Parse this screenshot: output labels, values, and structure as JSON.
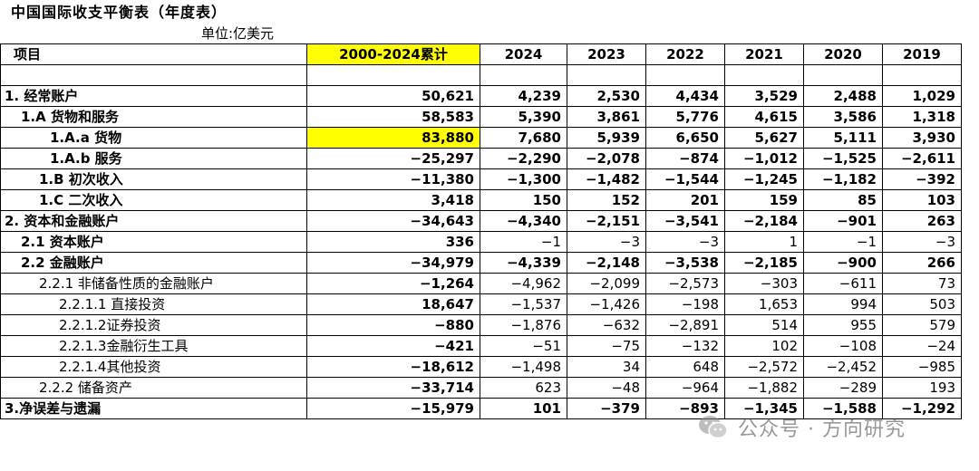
{
  "title": "中国国际收支平衡表（年度表）",
  "unit": "单位:亿美元",
  "header": {
    "item": "项目",
    "columns": [
      "2000-2024累计",
      "2024",
      "2023",
      "2022",
      "2021",
      "2020",
      "2019"
    ]
  },
  "rows": [
    {
      "label": "",
      "values": [
        "",
        "",
        "",
        "",
        "",
        "",
        ""
      ]
    },
    {
      "label": "1. 经常账户",
      "values": [
        "50,621",
        "4,239",
        "2,530",
        "4,434",
        "3,529",
        "2,488",
        "1,029"
      ]
    },
    {
      "label": "1.A 货物和服务",
      "values": [
        "58,583",
        "5,390",
        "3,861",
        "5,776",
        "4,615",
        "3,586",
        "1,318"
      ]
    },
    {
      "label": "1.A.a 货物",
      "values": [
        "83,880",
        "7,680",
        "5,939",
        "6,650",
        "5,627",
        "5,111",
        "3,930"
      ]
    },
    {
      "label": "1.A.b 服务",
      "values": [
        "−25,297",
        "−2,290",
        "−2,078",
        "−874",
        "−1,012",
        "−1,525",
        "−2,611"
      ]
    },
    {
      "label": "1.B 初次收入",
      "values": [
        "−11,380",
        "−1,300",
        "−1,482",
        "−1,544",
        "−1,245",
        "−1,182",
        "−392"
      ]
    },
    {
      "label": "1.C 二次收入",
      "values": [
        "3,418",
        "150",
        "152",
        "201",
        "159",
        "85",
        "103"
      ]
    },
    {
      "label": "2. 资本和金融账户",
      "values": [
        "−34,643",
        "−4,340",
        "−2,151",
        "−3,541",
        "−2,184",
        "−901",
        "263"
      ]
    },
    {
      "label": "2.1 资本账户",
      "values": [
        "336",
        "−1",
        "−3",
        "−3",
        "1",
        "−1",
        "−3"
      ]
    },
    {
      "label": "2.2 金融账户",
      "values": [
        "−34,979",
        "−4,339",
        "−2,148",
        "−3,538",
        "−2,185",
        "−900",
        "266"
      ]
    },
    {
      "label": "2.2.1 非储备性质的金融账户",
      "values": [
        "−1,264",
        "−4,962",
        "−2,099",
        "−2,573",
        "−303",
        "−611",
        "73"
      ]
    },
    {
      "label": "2.2.1.1 直接投资",
      "values": [
        "18,647",
        "−1,537",
        "−1,426",
        "−198",
        "1,653",
        "994",
        "503"
      ]
    },
    {
      "label": "2.2.1.2证券投资",
      "values": [
        "−880",
        "−1,876",
        "−632",
        "−2,891",
        "514",
        "955",
        "579"
      ]
    },
    {
      "label": "2.2.1.3金融衍生工具",
      "values": [
        "−421",
        "−51",
        "−75",
        "−132",
        "102",
        "−108",
        "−24"
      ]
    },
    {
      "label": "2.2.1.4其他投资",
      "values": [
        "−18,612",
        "−1,498",
        "34",
        "648",
        "−2,572",
        "−2,452",
        "−985"
      ]
    },
    {
      "label": "2.2.2 储备资产",
      "values": [
        "−33,714",
        "623",
        "−48",
        "−964",
        "−1,882",
        "−289",
        "193"
      ]
    },
    {
      "label": "3.净误差与遗漏",
      "values": [
        "−15,979",
        "101",
        "−379",
        "−893",
        "−1,345",
        "−1,588",
        "−1,292"
      ]
    }
  ],
  "watermark": {
    "text": "公众号 · 方向研究",
    "icon": "wechat-icon"
  },
  "colors": {
    "highlight": "#ffff00",
    "grid": "#000000"
  }
}
